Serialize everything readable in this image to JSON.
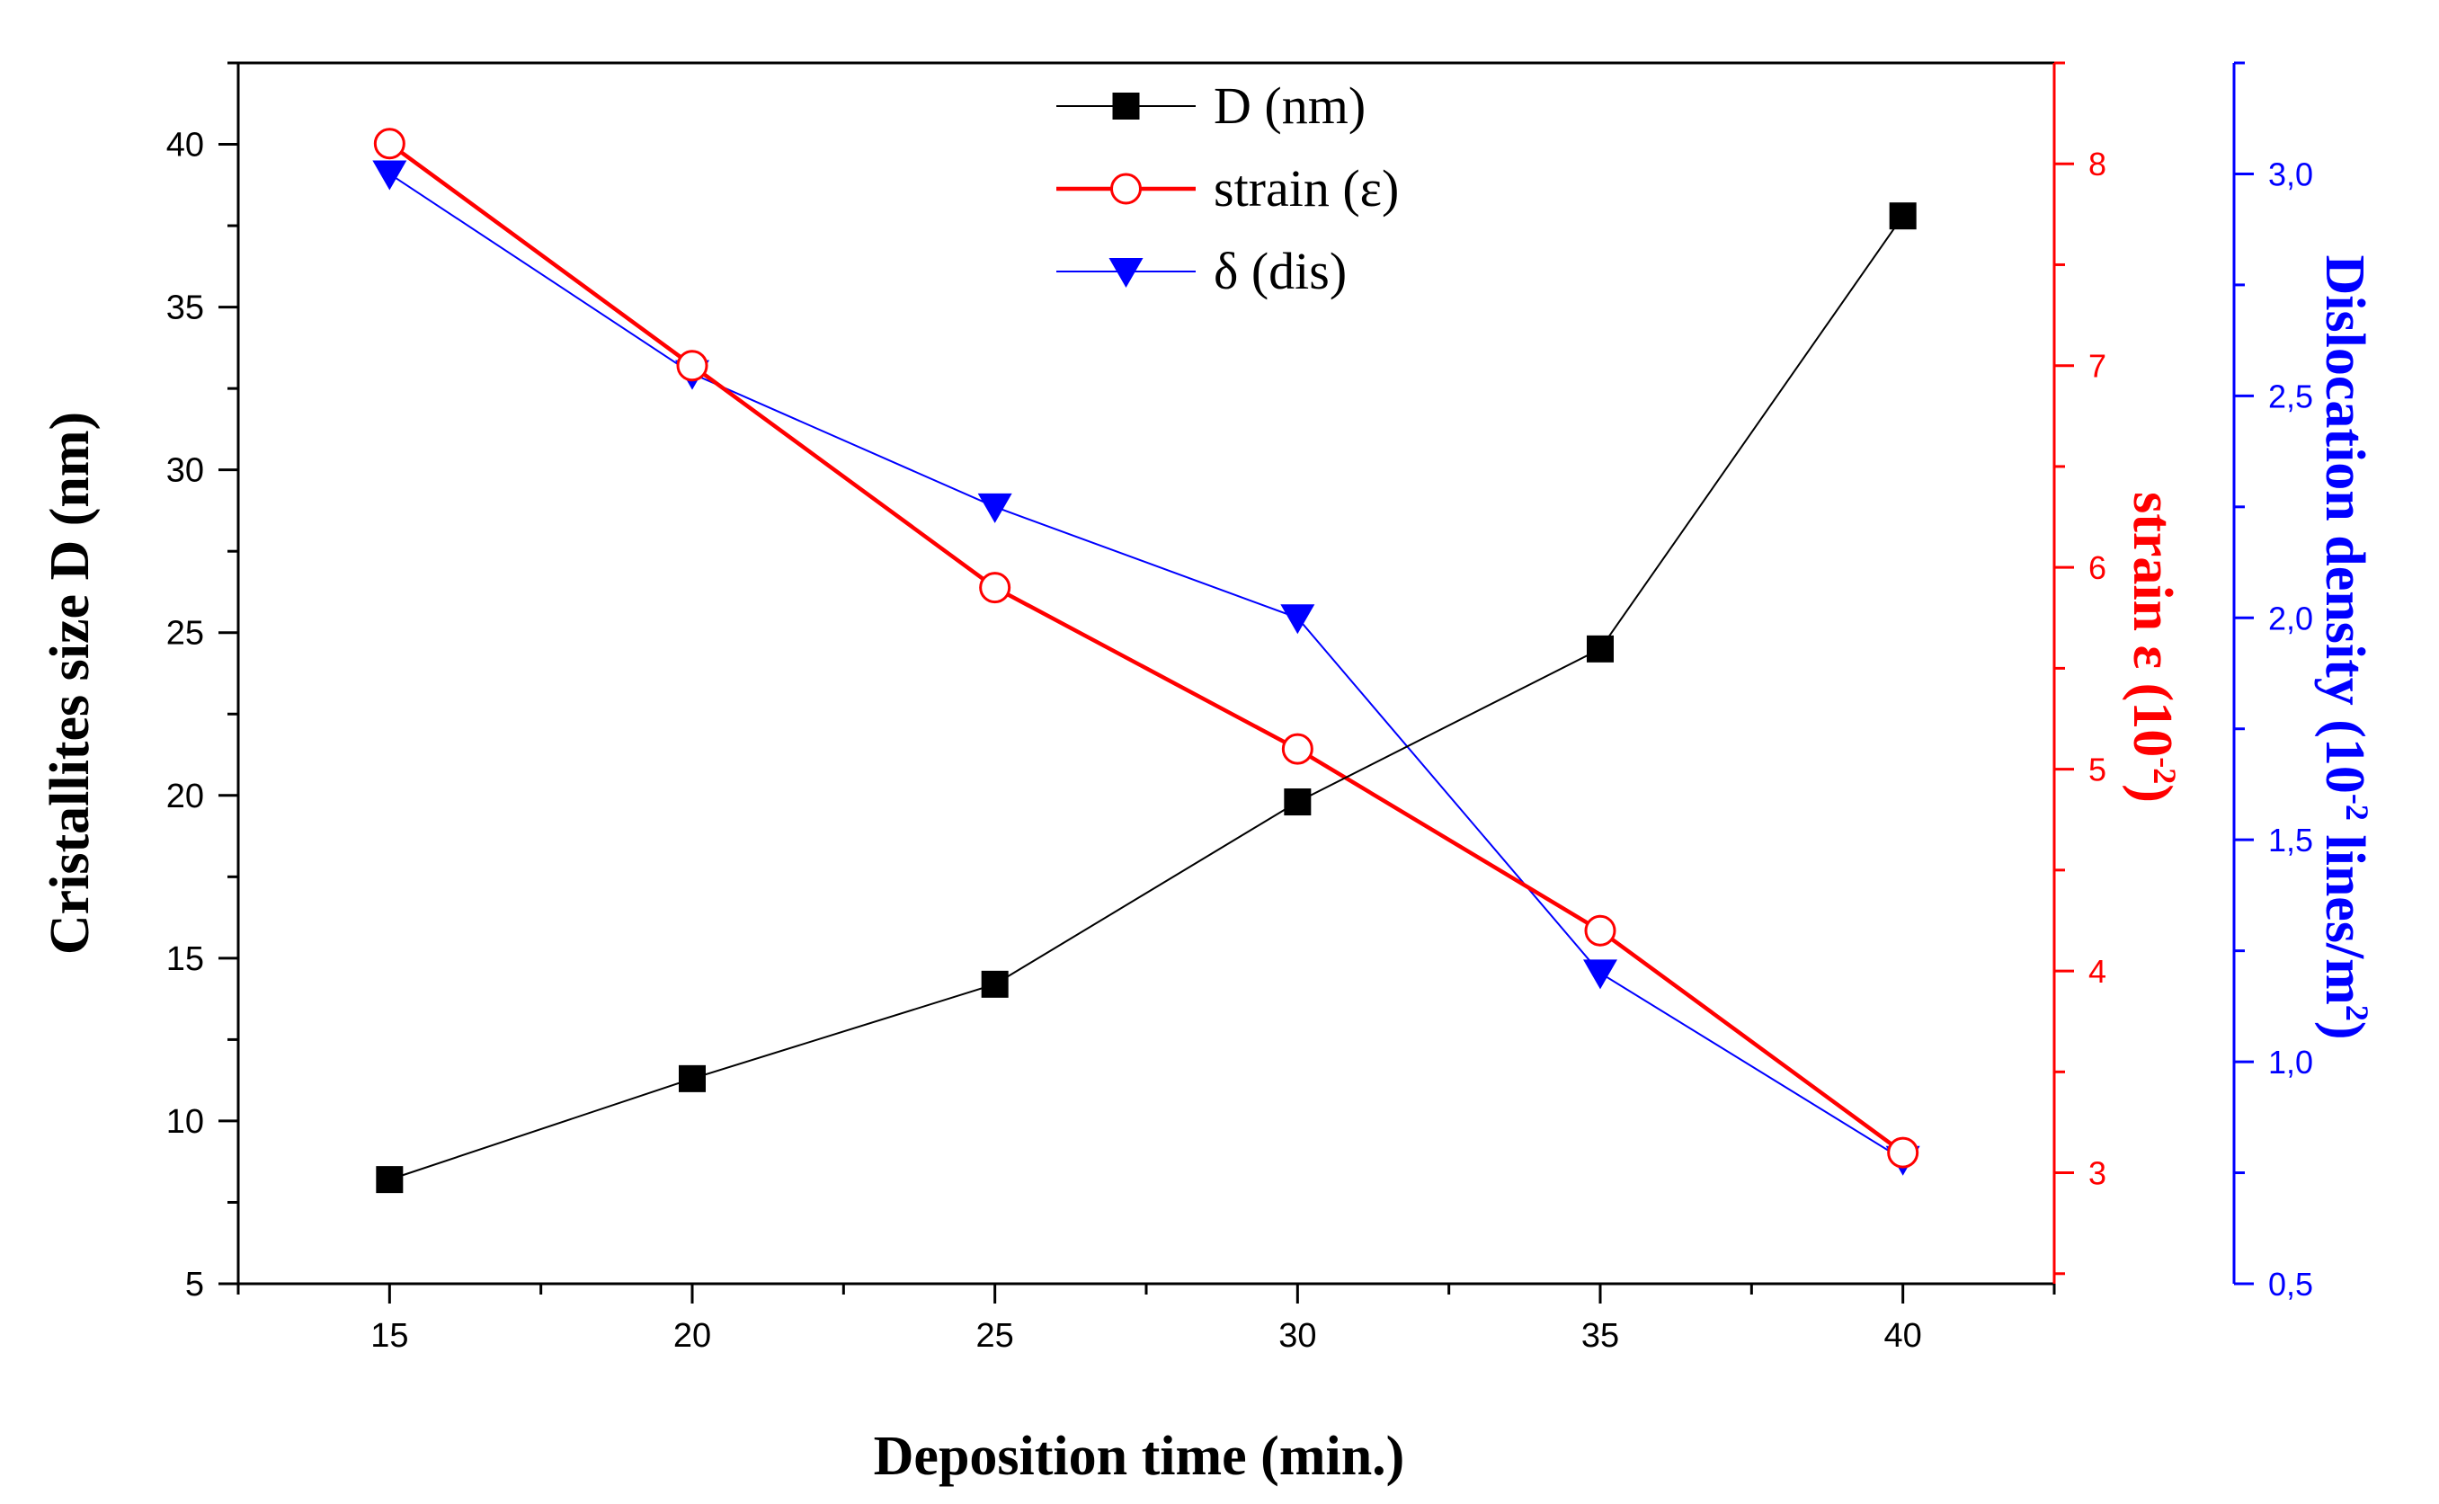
{
  "chart_data": {
    "type": "line",
    "x": [
      15,
      20,
      25,
      30,
      35,
      40
    ],
    "xlabel": "Deposition time (min.)",
    "xlim": [
      12.5,
      42.5
    ],
    "xticks": [
      "15",
      "20",
      "25",
      "30",
      "35",
      "40"
    ],
    "axes": {
      "left": {
        "label": "Cristallites size D (nm)",
        "lim": [
          5,
          42.5
        ],
        "ticks": [
          "5",
          "10",
          "15",
          "20",
          "25",
          "30",
          "35",
          "40"
        ],
        "color": "#000000"
      },
      "right_red": {
        "label_main": "strain ε (10",
        "label_sup": "-2",
        "label_end": ")",
        "lim": [
          2.45,
          8.5
        ],
        "ticks": [
          "3",
          "4",
          "5",
          "6",
          "7",
          "8"
        ],
        "color": "#ff0000"
      },
      "right_blue": {
        "label_main": "Dislocation density (10",
        "label_sup1": "-2",
        "label_mid": " lines/m",
        "label_sup2": "2",
        "label_end": ")",
        "lim": [
          0.5,
          3.25
        ],
        "ticks": [
          "0,5",
          "1,0",
          "1,5",
          "2,0",
          "2,5",
          "3,0"
        ],
        "color": "#0000ff"
      }
    },
    "series": [
      {
        "name": "D (nm)",
        "axis": "left",
        "marker": "square-filled",
        "color": "#000000",
        "values": [
          8.2,
          11.3,
          14.2,
          19.8,
          24.5,
          37.8
        ]
      },
      {
        "name": "strain (ε)",
        "axis": "right_red",
        "marker": "circle-open",
        "color": "#ff0000",
        "values": [
          8.1,
          7.0,
          5.9,
          5.1,
          4.2,
          3.1
        ]
      },
      {
        "name": "δ (dis)",
        "axis": "right_blue",
        "marker": "triangle-down-filled",
        "color": "#0000ff",
        "values": [
          3.0,
          2.55,
          2.25,
          2.0,
          1.2,
          0.78
        ]
      }
    ],
    "legend": {
      "position": "top-center"
    }
  }
}
